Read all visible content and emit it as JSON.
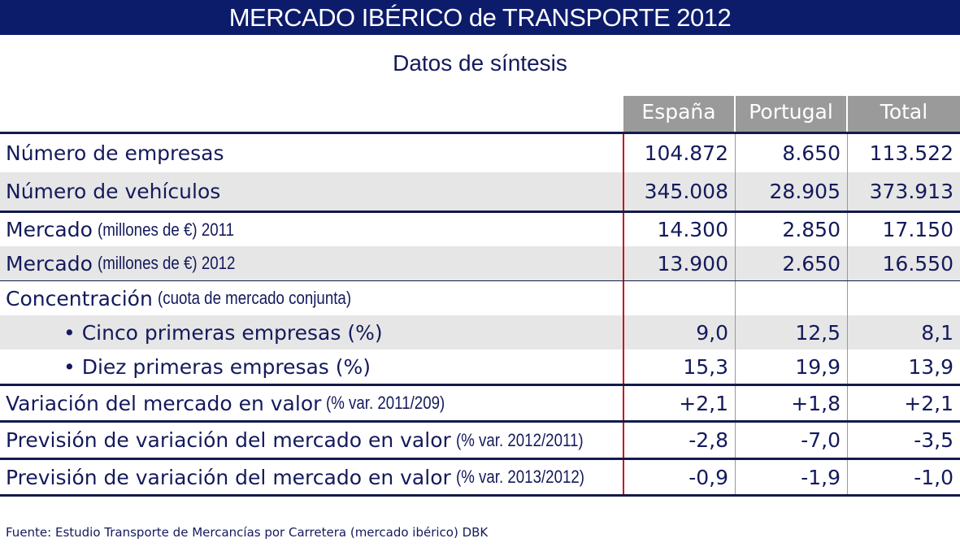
{
  "title": "MERCADO IBÉRICO de TRANSPORTE 2012",
  "subtitle": "Datos de síntesis",
  "columns": [
    "España",
    "Portugal",
    "Total"
  ],
  "rows": [
    {
      "label": "Número de empresas",
      "note": "",
      "values": [
        "104.872",
        "8.650",
        "113.522"
      ]
    },
    {
      "label": "Número de vehículos",
      "note": "",
      "values": [
        "345.008",
        "28.905",
        "373.913"
      ]
    },
    {
      "label": "Mercado",
      "note": "(millones de €) 2011",
      "values": [
        "14.300",
        "2.850",
        "17.150"
      ]
    },
    {
      "label": "Mercado",
      "note": "(millones de €) 2012",
      "values": [
        "13.900",
        "2.650",
        "16.550"
      ]
    },
    {
      "label": "Concentración",
      "note": "(cuota de mercado conjunta)",
      "values": [
        "",
        "",
        ""
      ]
    },
    {
      "label": "• Cinco primeras empresas (%)",
      "note": "",
      "values": [
        "9,0",
        "12,5",
        "8,1"
      ]
    },
    {
      "label": "• Diez primeras empresas (%)",
      "note": "",
      "values": [
        "15,3",
        "19,9",
        "13,9"
      ]
    },
    {
      "label": "Variación del mercado en valor",
      "note": "(% var. 2011/209)",
      "values": [
        "+2,1",
        "+1,8",
        "+2,1"
      ]
    },
    {
      "label": "Previsión de variación del mercado en valor",
      "note": "(% var. 2012/2011)",
      "values": [
        "-2,8",
        "-7,0",
        "-3,5"
      ]
    },
    {
      "label": "Previsión de variación del mercado en valor",
      "note": "(% var. 2013/2012)",
      "values": [
        "-0,9",
        "-1,9",
        "-1,0"
      ]
    }
  ],
  "source": "Fuente: Estudio Transporte de Mercancías por Carretera (mercado ibérico) DBK"
}
